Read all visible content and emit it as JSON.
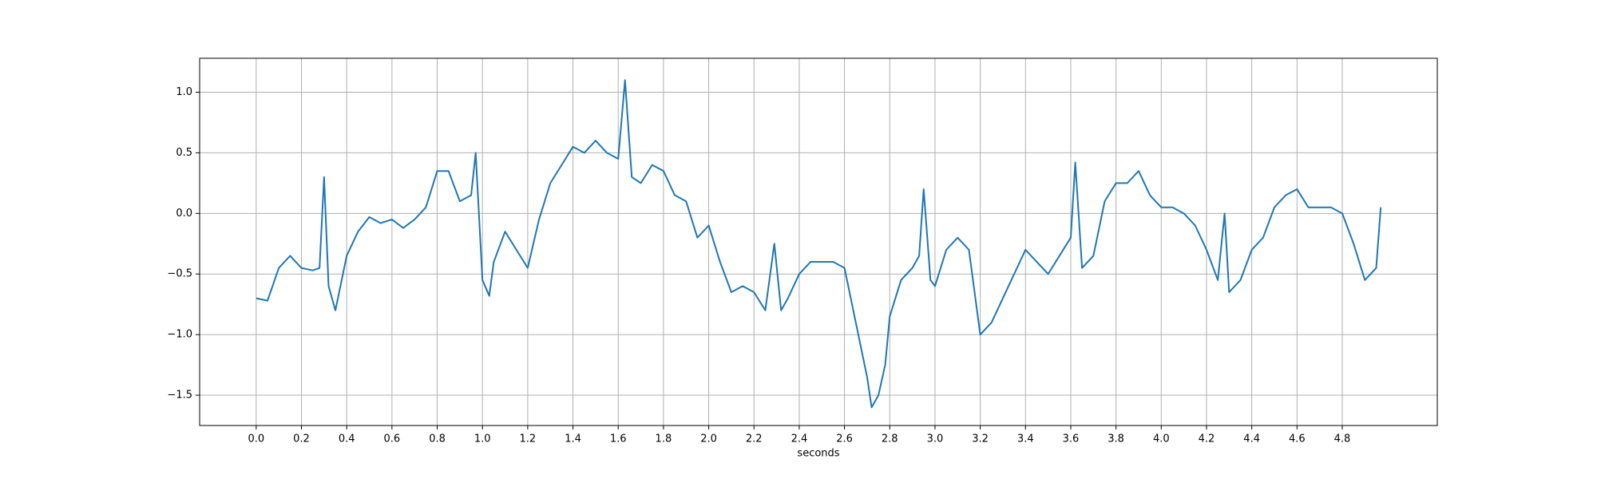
{
  "chart_data": {
    "type": "line",
    "xlabel": "seconds",
    "x": [
      0.0,
      0.05,
      0.1,
      0.15,
      0.2,
      0.25,
      0.28,
      0.3,
      0.32,
      0.35,
      0.4,
      0.45,
      0.5,
      0.55,
      0.6,
      0.65,
      0.7,
      0.75,
      0.8,
      0.85,
      0.9,
      0.95,
      0.97,
      1.0,
      1.03,
      1.05,
      1.1,
      1.15,
      1.2,
      1.25,
      1.3,
      1.35,
      1.4,
      1.45,
      1.5,
      1.55,
      1.6,
      1.63,
      1.66,
      1.7,
      1.75,
      1.8,
      1.85,
      1.9,
      1.95,
      2.0,
      2.05,
      2.1,
      2.15,
      2.2,
      2.25,
      2.29,
      2.32,
      2.35,
      2.4,
      2.45,
      2.5,
      2.55,
      2.6,
      2.65,
      2.7,
      2.72,
      2.75,
      2.78,
      2.8,
      2.85,
      2.9,
      2.93,
      2.95,
      2.98,
      3.0,
      3.05,
      3.1,
      3.15,
      3.2,
      3.25,
      3.3,
      3.35,
      3.4,
      3.45,
      3.5,
      3.55,
      3.6,
      3.62,
      3.65,
      3.7,
      3.75,
      3.8,
      3.85,
      3.9,
      3.95,
      4.0,
      4.05,
      4.1,
      4.15,
      4.2,
      4.25,
      4.28,
      4.3,
      4.35,
      4.4,
      4.45,
      4.5,
      4.55,
      4.6,
      4.65,
      4.7,
      4.75,
      4.8,
      4.85,
      4.9,
      4.95,
      4.97
    ],
    "series": [
      {
        "color": "#1f77b4",
        "values": [
          -0.7,
          -0.72,
          -0.45,
          -0.35,
          -0.45,
          -0.47,
          -0.45,
          0.3,
          -0.6,
          -0.8,
          -0.35,
          -0.15,
          -0.03,
          -0.08,
          -0.05,
          -0.12,
          -0.05,
          0.05,
          0.35,
          0.35,
          0.1,
          0.15,
          0.5,
          -0.55,
          -0.68,
          -0.4,
          -0.15,
          -0.3,
          -0.45,
          -0.05,
          0.25,
          0.4,
          0.55,
          0.5,
          0.6,
          0.5,
          0.45,
          1.1,
          0.3,
          0.25,
          0.4,
          0.35,
          0.15,
          0.1,
          -0.2,
          -0.1,
          -0.4,
          -0.65,
          -0.6,
          -0.65,
          -0.8,
          -0.25,
          -0.8,
          -0.7,
          -0.5,
          -0.4,
          -0.4,
          -0.4,
          -0.45,
          -0.9,
          -1.35,
          -1.6,
          -1.5,
          -1.25,
          -0.85,
          -0.55,
          -0.45,
          -0.35,
          0.2,
          -0.55,
          -0.6,
          -0.3,
          -0.2,
          -0.3,
          -1.0,
          -0.9,
          -0.7,
          -0.5,
          -0.3,
          -0.4,
          -0.5,
          -0.35,
          -0.2,
          0.42,
          -0.45,
          -0.35,
          0.1,
          0.25,
          0.25,
          0.35,
          0.15,
          0.05,
          0.05,
          0.0,
          -0.1,
          -0.3,
          -0.55,
          0.0,
          -0.65,
          -0.55,
          -0.3,
          -0.2,
          0.05,
          0.15,
          0.2,
          0.05,
          0.05,
          0.05,
          0.0,
          -0.25,
          -0.55,
          -0.45,
          0.05
        ]
      }
    ],
    "xlim": [
      -0.25,
      5.22
    ],
    "ylim": [
      -1.75,
      1.28
    ],
    "xticks": [
      {
        "value": 0,
        "label": "0.0"
      },
      0.2,
      0.4,
      0.6,
      0.8,
      {
        "value": 1,
        "label": "1.0"
      },
      1.2,
      1.4,
      1.6,
      1.8,
      {
        "value": 2,
        "label": "2.0"
      },
      2.2,
      2.4,
      2.6,
      2.8,
      {
        "value": 3,
        "label": "3.0"
      },
      3.2,
      3.4,
      3.6,
      3.8,
      {
        "value": 4,
        "label": "4.0"
      },
      4.2,
      4.4,
      4.6,
      4.8
    ],
    "yticks": [
      {
        "value": -1.5,
        "label": "−1.5"
      },
      {
        "value": -1,
        "label": "−1.0"
      },
      {
        "value": -0.5,
        "label": "−0.5"
      },
      {
        "value": 0,
        "label": "0.0"
      },
      0.5,
      {
        "value": 1,
        "label": "1.0"
      }
    ],
    "grid": true
  }
}
